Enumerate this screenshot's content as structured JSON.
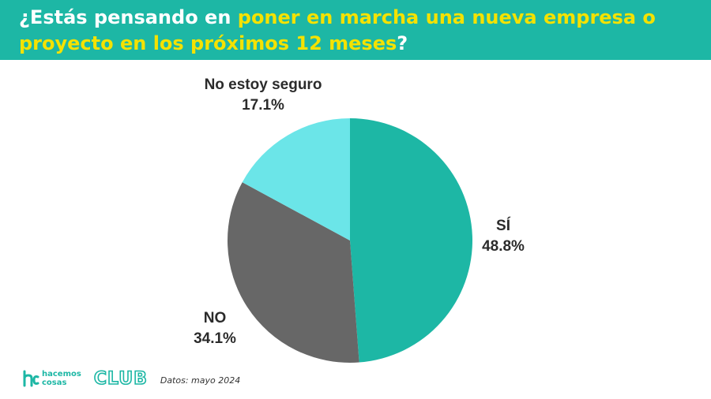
{
  "header": {
    "title_part1": "¿Estás pensando en ",
    "title_highlight": "poner en marcha una nueva empresa o proyecto en los próximos 12 meses",
    "title_part2": "?"
  },
  "colors": {
    "header_bg": "#1db7a5",
    "highlight": "#f4e200"
  },
  "chart_data": {
    "type": "pie",
    "title": "¿Estás pensando en poner en marcha una nueva empresa o proyecto en los próximos 12 meses?",
    "slices": [
      {
        "label": "SÍ",
        "value": 48.8,
        "value_label": "48.8%",
        "color": "#1db7a5"
      },
      {
        "label": "NO",
        "value": 34.1,
        "value_label": "34.1%",
        "color": "#676767"
      },
      {
        "label": "No estoy seguro",
        "value": 17.1,
        "value_label": "17.1%",
        "color": "#6be5e8"
      }
    ],
    "start": "top",
    "direction": "clockwise"
  },
  "footer": {
    "logo_line1": "hacemos",
    "logo_line2": "cosas",
    "logo_club": "CLUB",
    "source": "Datos: mayo 2024"
  }
}
